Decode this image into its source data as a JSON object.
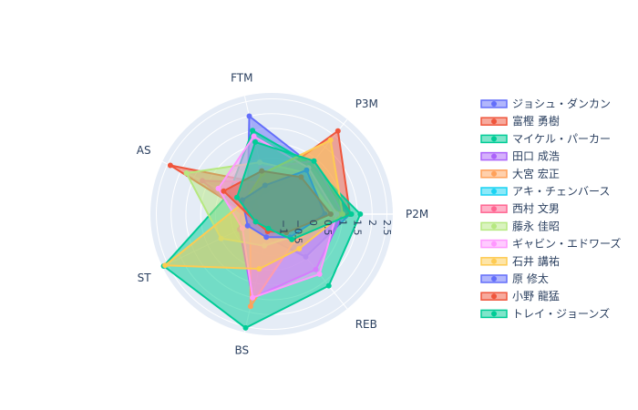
{
  "chart_data": {
    "type": "radar",
    "axes": [
      "P2M",
      "P3M",
      "FTM",
      "AS",
      "ST",
      "BS",
      "REB"
    ],
    "radial_range": [
      -1.4,
      2.7
    ],
    "radial_ticks": [
      "−1",
      "−0.5",
      "0",
      "0.5",
      "1",
      "1.5",
      "2",
      "2.5"
    ],
    "grid": true,
    "legend_position": "right",
    "series": [
      {
        "name": "ジョシュ・ダンカン",
        "color": "#636efa",
        "values": [
          1.25,
          0.75,
          2.0,
          -0.5,
          -0.8,
          -0.6,
          0.45
        ]
      },
      {
        "name": "富樫 勇樹",
        "color": "#ef553b",
        "values": [
          1.25,
          2.2,
          -0.35,
          2.4,
          -0.9,
          -0.9,
          -1.0
        ]
      },
      {
        "name": "マイケル・パーカー",
        "color": "#00cc96",
        "values": [
          1.6,
          0.75,
          1.5,
          0.2,
          2.65,
          2.55,
          1.7
        ]
      },
      {
        "name": "田口 成浩",
        "color": "#ab63fa",
        "values": [
          1.0,
          0.9,
          0.2,
          -0.3,
          -0.2,
          1.5,
          1.0
        ]
      },
      {
        "name": "大宮 宏正",
        "color": "#ffa15a",
        "values": [
          0.9,
          0.1,
          0.1,
          -0.8,
          -0.6,
          1.8,
          -0.2
        ]
      },
      {
        "name": "アキ・チェンバース",
        "color": "#19d3f3",
        "values": [
          0.5,
          0.3,
          -0.6,
          -0.6,
          -0.9,
          -0.8,
          -0.4
        ]
      },
      {
        "name": "西村 文男",
        "color": "#ff6692",
        "values": [
          0.5,
          0.3,
          -0.3,
          1.2,
          -0.7,
          -0.6,
          -0.7
        ]
      },
      {
        "name": "藤永 佳昭",
        "color": "#b6e880",
        "values": [
          0.7,
          0.4,
          0.4,
          1.8,
          0.5,
          -0.3,
          -0.4
        ]
      },
      {
        "name": "ギャビン・エドワーズ",
        "color": "#ff97ff",
        "values": [
          0.8,
          0.6,
          1.3,
          0.6,
          -0.3,
          1.5,
          1.2
        ]
      },
      {
        "name": "石井 講祐",
        "color": "#fecb52",
        "values": [
          1.0,
          1.8,
          0.0,
          -0.4,
          2.6,
          0.5,
          0.1
        ]
      },
      {
        "name": "原 修太",
        "color": "#636efa",
        "values": [
          0.4,
          0.5,
          -0.4,
          -0.3,
          -0.5,
          -0.6,
          -0.4
        ]
      },
      {
        "name": "小野 龍猛",
        "color": "#ef553b",
        "values": [
          0.6,
          0.2,
          0.1,
          0.4,
          -0.8,
          -0.8,
          -0.6
        ]
      },
      {
        "name": "トレイ・ジョーンズ",
        "color": "#00cc96",
        "values": [
          1.3,
          0.9,
          1.1,
          -0.1,
          -0.8,
          -0.9,
          -0.3
        ]
      }
    ]
  }
}
